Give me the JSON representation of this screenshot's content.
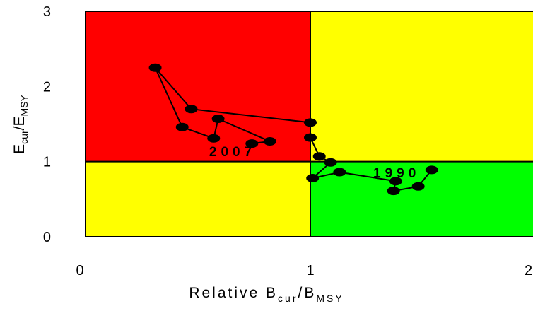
{
  "chart_data": {
    "type": "scatter",
    "xlabel": "Relative B",
    "xlabel_sub1": "cur",
    "xlabel_mid": "/B",
    "xlabel_sub2": "MSY",
    "ylabel": "E",
    "ylabel_sub1": "cur",
    "ylabel_mid": "/E",
    "ylabel_sub2": "MSY",
    "xlim": [
      0,
      2
    ],
    "ylim": [
      0,
      3
    ],
    "x_ticks": [
      {
        "value": 0,
        "label": "0"
      },
      {
        "value": 1,
        "label": "1"
      },
      {
        "value": 2,
        "label": "2"
      }
    ],
    "y_ticks": [
      {
        "value": 0,
        "label": "0"
      },
      {
        "value": 1,
        "label": "1"
      },
      {
        "value": 2,
        "label": "2"
      },
      {
        "value": 3,
        "label": "3"
      }
    ],
    "reference_x": 1,
    "reference_y": 1,
    "zones": [
      {
        "quadrant": "top-left",
        "color": "#ff0000"
      },
      {
        "quadrant": "top-right",
        "color": "#ffff00"
      },
      {
        "quadrant": "bottom-left",
        "color": "#ffff00"
      },
      {
        "quadrant": "bottom-right",
        "color": "#00ff00"
      }
    ],
    "series": [
      {
        "points": [
          [
            1.54,
            0.89
          ],
          [
            1.48,
            0.67
          ],
          [
            1.37,
            0.61
          ],
          [
            1.38,
            0.74
          ],
          [
            1.13,
            0.86
          ],
          [
            1.01,
            0.78
          ],
          [
            1.09,
            0.99
          ],
          [
            1.04,
            1.07
          ],
          [
            1.0,
            1.32
          ],
          [
            1.0,
            1.52
          ],
          [
            0.47,
            1.7
          ],
          [
            0.31,
            2.25
          ],
          [
            0.43,
            1.46
          ],
          [
            0.57,
            1.31
          ],
          [
            0.59,
            1.57
          ],
          [
            0.82,
            1.27
          ],
          [
            0.74,
            1.24
          ]
        ]
      }
    ],
    "annotations": [
      {
        "text": "1990",
        "x": 1.28,
        "y": 0.79
      },
      {
        "text": "2007",
        "x": 0.55,
        "y": 1.07
      }
    ],
    "grid": false,
    "legend": "none"
  }
}
